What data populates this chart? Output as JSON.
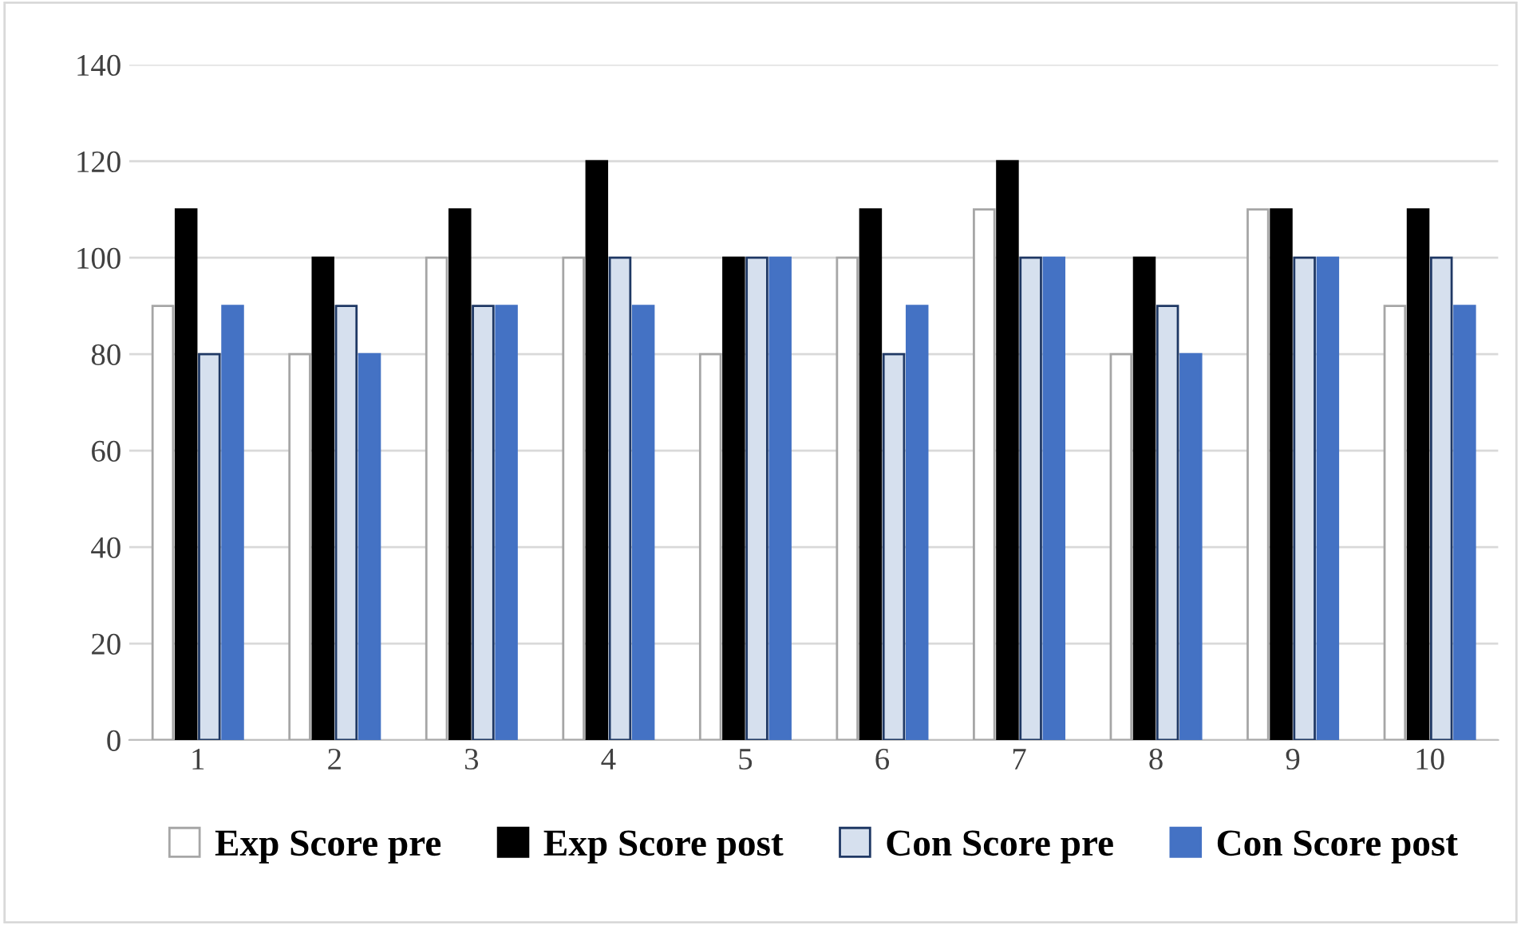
{
  "chart_data": {
    "type": "bar",
    "categories": [
      "1",
      "2",
      "3",
      "4",
      "5",
      "6",
      "7",
      "8",
      "9",
      "10"
    ],
    "series": [
      {
        "name": "Exp Score pre",
        "color": "#ffffff",
        "values": [
          90,
          80,
          100,
          100,
          80,
          100,
          110,
          80,
          110,
          90
        ]
      },
      {
        "name": "Exp Score post",
        "color": "#000000",
        "values": [
          110,
          100,
          110,
          120,
          100,
          110,
          120,
          100,
          110,
          110
        ]
      },
      {
        "name": "Con Score pre",
        "color": "#d6e0ee",
        "values": [
          80,
          90,
          90,
          100,
          100,
          80,
          100,
          90,
          100,
          100
        ]
      },
      {
        "name": "Con Score post",
        "color": "#4472c4",
        "values": [
          90,
          80,
          90,
          90,
          100,
          90,
          100,
          80,
          100,
          90
        ]
      }
    ],
    "ylim": [
      0,
      140
    ],
    "yticks": [
      0,
      20,
      40,
      60,
      80,
      100,
      120,
      140
    ],
    "grid": "y",
    "legend": "bottom"
  }
}
